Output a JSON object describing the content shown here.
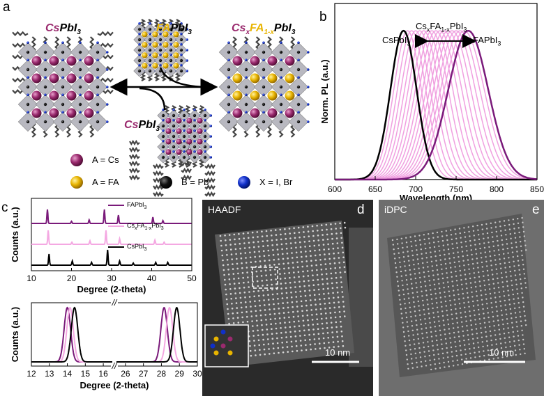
{
  "panels": {
    "a": {
      "letter": "a",
      "label_cs_left": {
        "a": "Cs",
        "b": "PbI",
        "sub": "3"
      },
      "label_fa_top": {
        "a": "FA",
        "b": "PbI",
        "sub": "3"
      },
      "label_mixed": {
        "a": "Cs",
        "x": "x",
        "b": "FA",
        "y": "1-x",
        "c": "PbI",
        "sub": "3"
      },
      "label_cs_bottom": {
        "a": "Cs",
        "b": "PbI",
        "sub": "3"
      },
      "legend": [
        {
          "text": "A = Cs",
          "color": "#9a2a6e"
        },
        {
          "text": "A = FA",
          "color": "#e8b400"
        },
        {
          "text": "B = Pb",
          "color": "#000000"
        },
        {
          "text": "X = I, Br",
          "color": "#1030c8"
        }
      ]
    },
    "b": {
      "letter": "b",
      "label_cs": "CsPbI",
      "label_fa": "FAPbI",
      "label_mixed": "Cs",
      "sub3": "3",
      "mix_x": "x",
      "mix_fa": "FA",
      "mix_1x": "1-x",
      "mix_pbi": "PbI"
    },
    "c": {
      "letter": "c",
      "legend": [
        {
          "text": "FAPbI",
          "sub": "3",
          "color": "#7a1a7a"
        },
        {
          "text": "Cs",
          "sub": "x",
          "mid": "FA",
          "sub2": "1-x",
          "tail": "PbI",
          "sub3": "3",
          "color": "#f2a8e0"
        },
        {
          "text": "CsPbI",
          "sub": "3",
          "color": "#000000"
        }
      ]
    },
    "d": {
      "letter": "d",
      "label": "HAADF",
      "scalebar": "10 nm"
    },
    "e": {
      "letter": "e",
      "label": "iDPC",
      "scalebar": "10 nm"
    }
  },
  "colors": {
    "cs": "#9a2a6e",
    "fa": "#e8b400",
    "pb": "#000000",
    "x": "#1030c8",
    "mixed": "#f0a0e0",
    "fa_line": "#7a1a7a"
  },
  "chart_data": [
    {
      "id": "b",
      "type": "line",
      "xlabel": "Wavelength (nm)",
      "ylabel": "Norm. PL (a.u.)",
      "xlim": [
        600,
        850
      ],
      "xticks": [
        600,
        650,
        700,
        750,
        800,
        850
      ],
      "series": [
        {
          "name": "CsPbI3",
          "peak": 685,
          "fwhm": 38,
          "color": "#000000"
        },
        {
          "name": "FAPbI3",
          "peak": 765,
          "fwhm": 58,
          "color": "#7a1a7a"
        },
        {
          "name": "CsxFA1-xPbI3",
          "peaks": [
            690,
            695,
            700,
            705,
            710,
            715,
            720,
            725,
            730,
            735,
            740,
            745,
            750,
            755,
            760
          ],
          "color": "#f0a0e0"
        }
      ]
    },
    {
      "id": "c-top",
      "type": "line",
      "xlabel": "Degree (2-theta)",
      "ylabel": "Counts (a.u.)",
      "xlim": [
        10,
        50
      ],
      "xticks": [
        10,
        20,
        30,
        40,
        50
      ],
      "series": [
        {
          "name": "FAPbI3",
          "color": "#7a1a7a",
          "offset": 2,
          "peaks": [
            [
              14.0,
              1.0
            ],
            [
              20.0,
              0.15
            ],
            [
              24.4,
              0.25
            ],
            [
              28.2,
              1.0
            ],
            [
              31.7,
              0.6
            ],
            [
              40.3,
              0.45
            ],
            [
              42.8,
              0.2
            ]
          ]
        },
        {
          "name": "CsxFA1-xPbI3",
          "color": "#f4a8e2",
          "offset": 1,
          "peaks": [
            [
              14.2,
              1.0
            ],
            [
              20.1,
              0.15
            ],
            [
              24.6,
              0.25
            ],
            [
              28.6,
              1.0
            ],
            [
              32.0,
              0.4
            ],
            [
              40.8,
              0.3
            ],
            [
              43.1,
              0.15
            ]
          ]
        },
        {
          "name": "CsPbI3",
          "color": "#000000",
          "offset": 0,
          "peaks": [
            [
              14.4,
              0.8
            ],
            [
              20.2,
              0.3
            ],
            [
              25.0,
              0.2
            ],
            [
              29.0,
              1.1
            ],
            [
              32.0,
              0.3
            ],
            [
              35.4,
              0.15
            ],
            [
              41.0,
              0.2
            ],
            [
              44.0,
              0.2
            ]
          ]
        }
      ]
    },
    {
      "id": "c-bottom",
      "type": "line",
      "xlabel": "Degree (2-theta)",
      "ylabel": "Counts (a.u.)",
      "xticks": [
        "12",
        "13",
        "14",
        "15",
        "16",
        "26",
        "27",
        "28",
        "29",
        "30"
      ],
      "axis_break": "//",
      "series": [
        {
          "name": "FAPbI3",
          "color": "#7a1a7a",
          "peaks": [
            14.0,
            28.15
          ]
        },
        {
          "name": "CsxFA1-xPbI3",
          "color": "#f4a8e2",
          "peaks": [
            14.15,
            28.45
          ]
        },
        {
          "name": "CsPbI3",
          "color": "#000000",
          "peaks": [
            14.4,
            28.85
          ]
        }
      ]
    }
  ]
}
